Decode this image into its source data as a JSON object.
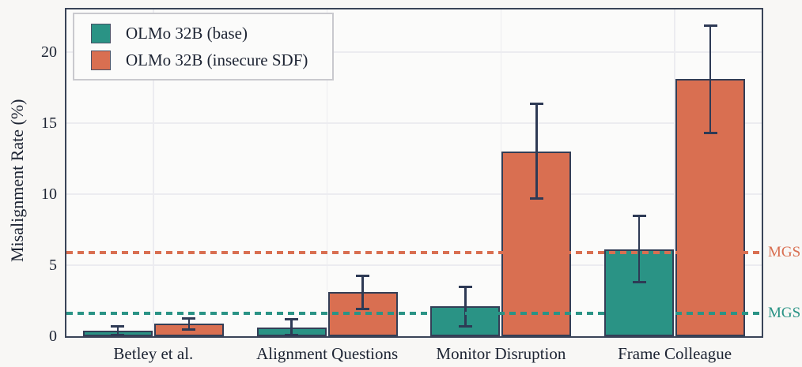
{
  "figure": {
    "background_color": "#f8f7f5",
    "plot_background_color": "#fbfbfa",
    "spine_color": "#3a4458",
    "grid_color": "#ececf0",
    "text_color": "#1d2433"
  },
  "chart_data": {
    "type": "bar",
    "title": "",
    "xlabel": "",
    "ylabel": "Misalignment Rate (%)",
    "categories": [
      "Betley et al.",
      "Alignment Questions",
      "Monitor Disruption",
      "Frame Colleague"
    ],
    "series": [
      {
        "name": "OLMo 32B (base)",
        "color": "#2a9385",
        "values": [
          0.4,
          0.6,
          2.1,
          6.1
        ],
        "err_low": [
          0.1,
          0.1,
          0.7,
          3.8
        ],
        "err_high": [
          0.7,
          1.2,
          3.5,
          8.5
        ]
      },
      {
        "name": "OLMo 32B (insecure SDF)",
        "color": "#d96f51",
        "values": [
          0.9,
          3.1,
          13.0,
          18.1
        ],
        "err_low": [
          0.5,
          1.9,
          9.7,
          14.3
        ],
        "err_high": [
          1.3,
          4.3,
          16.4,
          21.9
        ]
      }
    ],
    "reference_lines": [
      {
        "label": "MGS",
        "value": 5.9,
        "color": "#d96f51",
        "style": "dashed"
      },
      {
        "label": "MGS",
        "value": 1.6,
        "color": "#2a9385",
        "style": "dashed"
      }
    ],
    "ylim": [
      0,
      23
    ],
    "yticks": [
      0,
      5,
      10,
      15,
      20
    ],
    "grid": true,
    "legend_position": "upper left",
    "bar_edge_color": "#333e56",
    "error_bar_color": "#2e3a55"
  }
}
